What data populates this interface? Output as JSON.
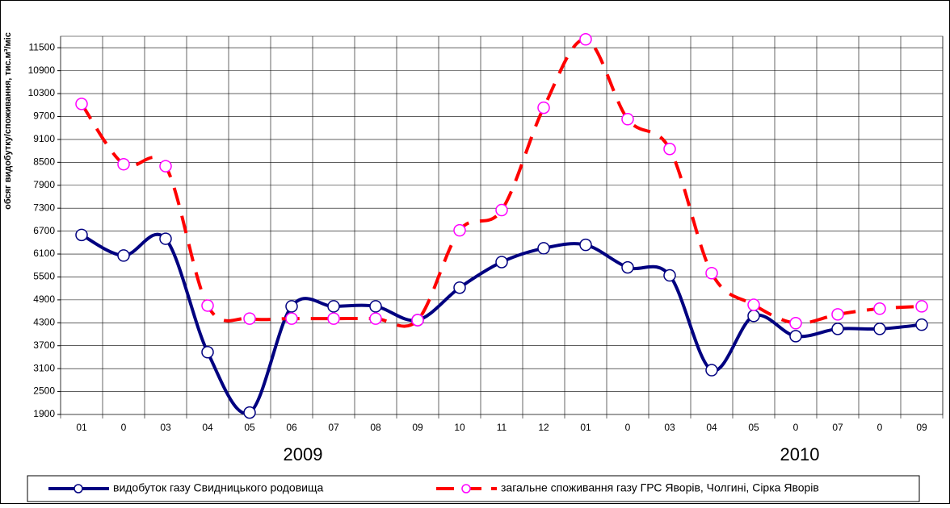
{
  "chart_data": {
    "type": "line",
    "y_label": "обсяг видобутку/споживання, тис.м³/міс",
    "categories": [
      "01",
      "0",
      "03",
      "04",
      "05",
      "06",
      "07",
      "08",
      "09",
      "10",
      "11",
      "12",
      "01",
      "0",
      "03",
      "04",
      "05",
      "0",
      "07",
      "0",
      "09"
    ],
    "x_group_labels": [
      "2009",
      "2010"
    ],
    "series": [
      {
        "name": "видобуток газу Свидницького родовища",
        "color": "#000080",
        "marker_stroke": "#000080",
        "dashed": false,
        "values": [
          6600,
          6060,
          6500,
          3530,
          1950,
          4730,
          4730,
          4730,
          4370,
          5220,
          5890,
          6250,
          6340,
          5750,
          5540,
          3060,
          4480,
          3950,
          4140,
          4140,
          4250
        ]
      },
      {
        "name": "загальне споживання газу ГРС Яворів, Чолгині, Сірка Яворів",
        "color": "#ff0000",
        "marker_stroke": "#ff00ff",
        "dashed": true,
        "values": [
          10030,
          8450,
          8400,
          4750,
          4410,
          4410,
          4410,
          4410,
          4370,
          6720,
          7250,
          9930,
          11720,
          9630,
          8850,
          5600,
          4770,
          4290,
          4520,
          4670,
          4730
        ]
      }
    ],
    "ylim": [
      1900,
      11800
    ],
    "yticks": [
      1900,
      2500,
      3100,
      3700,
      4300,
      4900,
      5500,
      6100,
      6700,
      7300,
      7900,
      8500,
      9100,
      9700,
      10300,
      10900,
      11500
    ],
    "grid": true
  }
}
